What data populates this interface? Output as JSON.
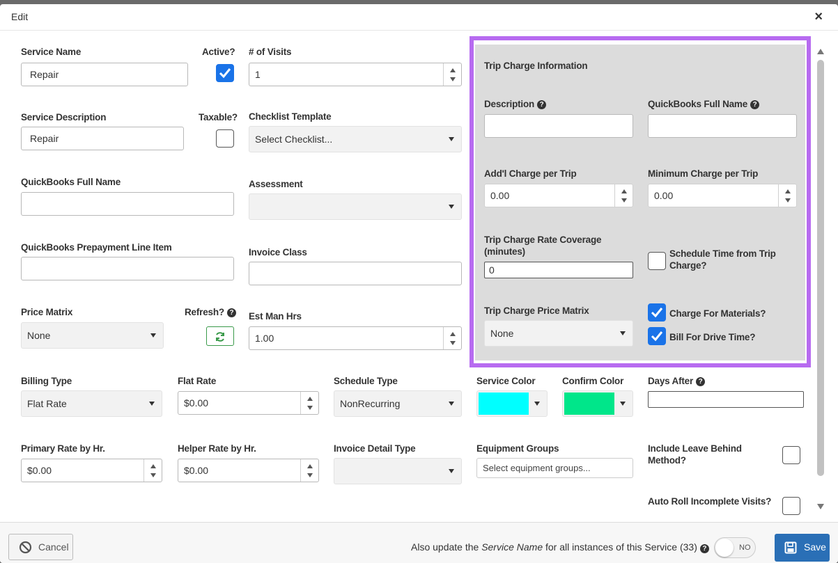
{
  "header": {
    "title": "Edit",
    "close_label": "×"
  },
  "left": {
    "service_name": {
      "label": "Service Name",
      "value": "Repair"
    },
    "active": {
      "label": "Active?",
      "checked": true
    },
    "visits": {
      "label": "# of Visits",
      "value": "1"
    },
    "service_description": {
      "label": "Service Description",
      "value": "Repair"
    },
    "taxable": {
      "label": "Taxable?",
      "checked": false
    },
    "checklist_template": {
      "label": "Checklist Template",
      "value": "Select Checklist..."
    },
    "quickbooks_full_name": {
      "label": "QuickBooks Full Name",
      "value": ""
    },
    "assessment": {
      "label": "Assessment",
      "value": ""
    },
    "qb_prepayment": {
      "label": "QuickBooks Prepayment Line Item",
      "value": ""
    },
    "invoice_class": {
      "label": "Invoice Class",
      "value": ""
    },
    "price_matrix": {
      "label": "Price Matrix",
      "value": "None"
    },
    "refresh": {
      "label": "Refresh?"
    },
    "est_man_hrs": {
      "label": "Est Man Hrs",
      "value": "1.00"
    }
  },
  "trip": {
    "title": "Trip Charge Information",
    "description": {
      "label": "Description",
      "value": ""
    },
    "qb_full_name": {
      "label": "QuickBooks Full Name",
      "value": ""
    },
    "addl_charge": {
      "label": "Add'l Charge per Trip",
      "value": "0.00"
    },
    "min_charge": {
      "label": "Minimum Charge per Trip",
      "value": "0.00"
    },
    "rate_coverage": {
      "label_line1": "Trip Charge Rate Coverage",
      "label_line2": "(minutes)",
      "value": "0"
    },
    "schedule_time": {
      "label_line1": "Schedule Time from Trip",
      "label_line2": "Charge?",
      "checked": false
    },
    "price_matrix": {
      "label": "Trip Charge Price Matrix",
      "value": "None"
    },
    "charge_materials": {
      "label": "Charge For Materials?",
      "checked": true
    },
    "bill_drive_time": {
      "label": "Bill For Drive Time?",
      "checked": true
    }
  },
  "bottom": {
    "billing_type": {
      "label": "Billing Type",
      "value": "Flat Rate"
    },
    "flat_rate": {
      "label": "Flat Rate",
      "value": "$0.00"
    },
    "schedule_type": {
      "label": "Schedule Type",
      "value": "NonRecurring"
    },
    "service_color": {
      "label": "Service Color",
      "color": "#00ffff"
    },
    "confirm_color": {
      "label": "Confirm Color",
      "color": "#00e68a"
    },
    "days_after": {
      "label": "Days After",
      "value": ""
    },
    "primary_rate": {
      "label": "Primary Rate by Hr.",
      "value": "$0.00"
    },
    "helper_rate": {
      "label": "Helper Rate by Hr.",
      "value": "$0.00"
    },
    "invoice_detail_type": {
      "label": "Invoice Detail Type",
      "value": ""
    },
    "equipment_groups": {
      "label": "Equipment Groups",
      "placeholder": "Select equipment groups..."
    },
    "leave_behind": {
      "label_line1": "Include Leave Behind",
      "label_line2": "Method?",
      "checked": false
    },
    "auto_roll": {
      "label": "Auto Roll Incomplete Visits?",
      "checked": false
    }
  },
  "footer": {
    "cancel_label": "Cancel",
    "note_prefix": "Also update the",
    "note_em": "Service Name",
    "note_suffix": "for all instances of this Service (33)",
    "toggle_label": "NO",
    "save_label": "Save"
  },
  "colors": {
    "accent": "#2a6fb6",
    "highlight_border": "#b76bf0",
    "checkbox": "#1a73e8",
    "refresh_green": "#3a9a4a"
  }
}
